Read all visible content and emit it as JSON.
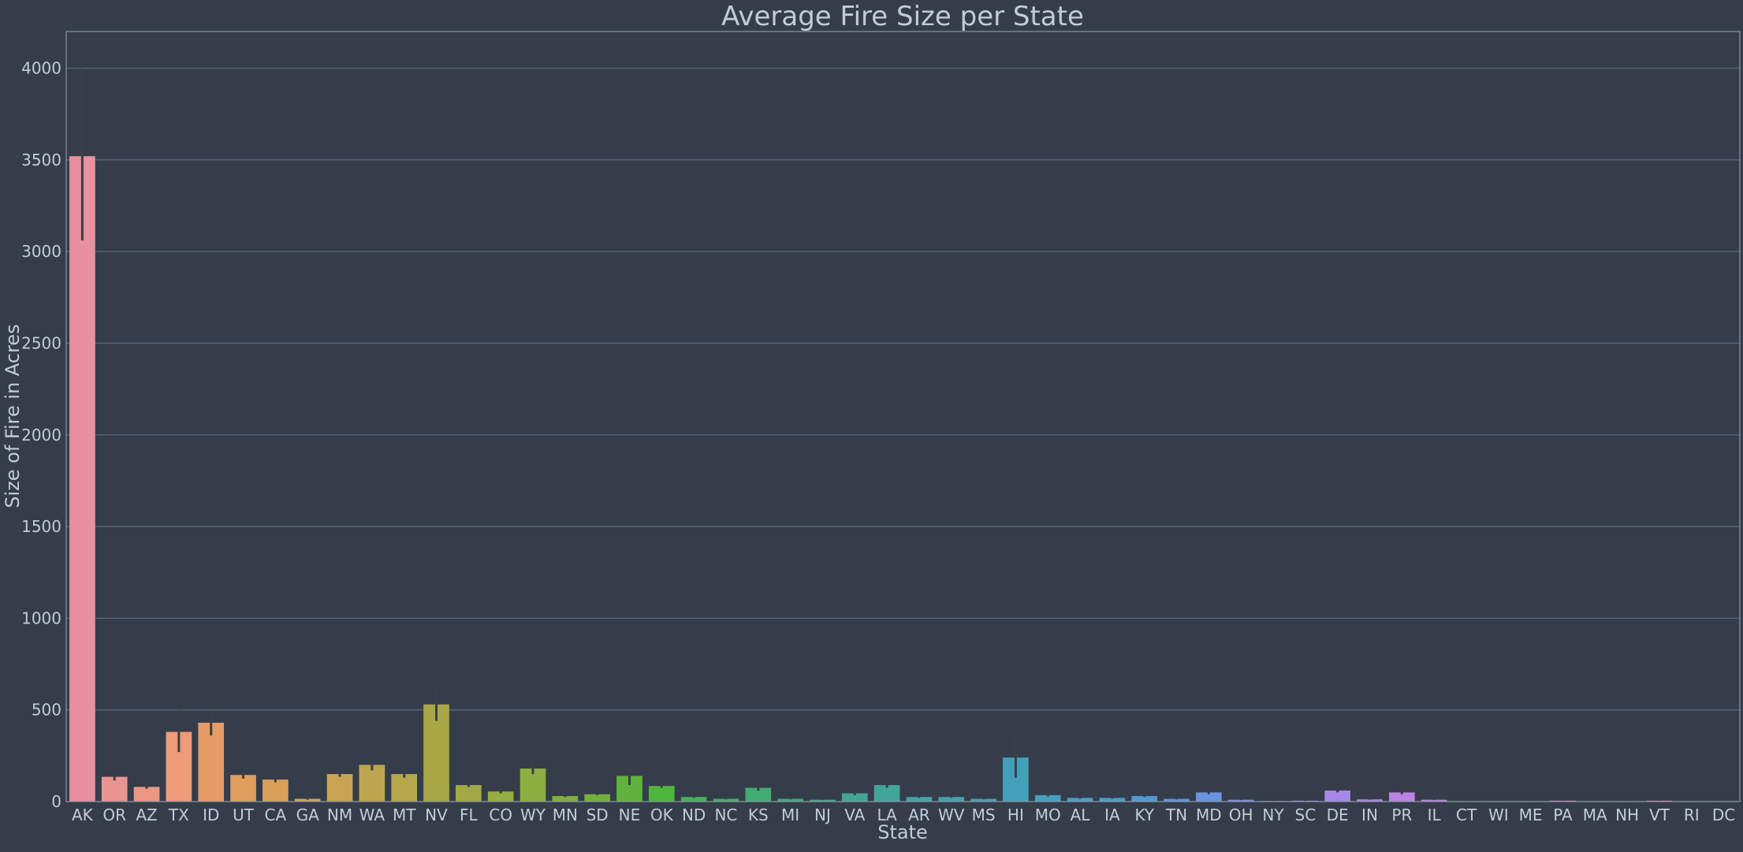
{
  "colors": {
    "background": "#353d4a",
    "grid": "#5b6676",
    "text": "#c2cbd8",
    "error_bar": "#3a3f46"
  },
  "chart_data": {
    "type": "bar",
    "title": "Average Fire Size per State",
    "xlabel": "State",
    "ylabel": "Size of Fire in Acres",
    "ylim": [
      0,
      4200
    ],
    "yticks": [
      0,
      500,
      1000,
      1500,
      2000,
      2500,
      3000,
      3500,
      4000
    ],
    "grid": true,
    "categories": [
      "AK",
      "OR",
      "AZ",
      "TX",
      "ID",
      "UT",
      "CA",
      "GA",
      "NM",
      "WA",
      "MT",
      "NV",
      "FL",
      "CO",
      "WY",
      "MN",
      "SD",
      "NE",
      "OK",
      "ND",
      "NC",
      "KS",
      "MI",
      "NJ",
      "VA",
      "LA",
      "AR",
      "WV",
      "MS",
      "HI",
      "MO",
      "AL",
      "IA",
      "KY",
      "TN",
      "MD",
      "OH",
      "NY",
      "SC",
      "DE",
      "IN",
      "PR",
      "IL",
      "CT",
      "WI",
      "ME",
      "PA",
      "MA",
      "NH",
      "VT",
      "RI",
      "DC"
    ],
    "values": [
      3520,
      135,
      80,
      380,
      430,
      145,
      120,
      15,
      150,
      200,
      150,
      530,
      90,
      55,
      180,
      30,
      40,
      140,
      85,
      25,
      15,
      75,
      15,
      10,
      45,
      90,
      25,
      25,
      15,
      240,
      35,
      20,
      20,
      30,
      15,
      50,
      10,
      3,
      5,
      60,
      12,
      50,
      10,
      2,
      2,
      2,
      5,
      2,
      2,
      5,
      2,
      1
    ],
    "errors": [
      [
        3060,
        4000
      ],
      [
        115,
        150
      ],
      [
        70,
        90
      ],
      [
        270,
        500
      ],
      [
        360,
        490
      ],
      [
        125,
        165
      ],
      [
        105,
        135
      ],
      [
        10,
        20
      ],
      [
        135,
        165
      ],
      [
        170,
        230
      ],
      [
        130,
        170
      ],
      [
        440,
        630
      ],
      [
        80,
        100
      ],
      [
        45,
        65
      ],
      [
        150,
        210
      ],
      [
        25,
        35
      ],
      [
        35,
        45
      ],
      [
        90,
        190
      ],
      [
        75,
        95
      ],
      [
        20,
        30
      ],
      [
        12,
        18
      ],
      [
        60,
        90
      ],
      [
        12,
        18
      ],
      [
        8,
        12
      ],
      [
        35,
        55
      ],
      [
        75,
        105
      ],
      [
        20,
        30
      ],
      [
        20,
        30
      ],
      [
        12,
        18
      ],
      [
        130,
        380
      ],
      [
        28,
        42
      ],
      [
        15,
        25
      ],
      [
        15,
        25
      ],
      [
        25,
        35
      ],
      [
        12,
        18
      ],
      [
        40,
        60
      ],
      [
        8,
        12
      ],
      [
        2,
        4
      ],
      [
        3,
        7
      ],
      [
        50,
        70
      ],
      [
        10,
        14
      ],
      [
        40,
        60
      ],
      [
        8,
        12
      ],
      [
        1,
        3
      ],
      [
        1,
        3
      ],
      [
        1,
        3
      ],
      [
        4,
        6
      ],
      [
        1,
        3
      ],
      [
        1,
        3
      ],
      [
        4,
        6
      ],
      [
        1,
        3
      ],
      [
        0,
        2
      ]
    ],
    "bar_colors": [
      "#e8909e",
      "#ea9492",
      "#eb9882",
      "#ec9c76",
      "#e79c68",
      "#e09e5d",
      "#d9a059",
      "#d2a257",
      "#c9a453",
      "#bfa54f",
      "#b6a74c",
      "#aaa845",
      "#a1aa43",
      "#96ad42",
      "#8eae41",
      "#82ae3f",
      "#72b03f",
      "#5fb33c",
      "#4eb53e",
      "#45b155",
      "#44ae67",
      "#43ab74",
      "#42a97e",
      "#42a888",
      "#42a692",
      "#42a59b",
      "#42a4a4",
      "#42a2ab",
      "#43a1b2",
      "#43a0b9",
      "#459fbf",
      "#479ec5",
      "#4a9ccc",
      "#509ad3",
      "#5996db",
      "#6994e0",
      "#7b90e3",
      "#8a8ee5",
      "#998be6",
      "#a688e6",
      "#b285e6",
      "#bd83e4",
      "#c680e1",
      "#d07ddd",
      "#d97bd6",
      "#e07ace",
      "#e67ac4",
      "#ea7bb8",
      "#ec7daa",
      "#ee809e",
      "#ef8392",
      "#ef8787"
    ]
  }
}
